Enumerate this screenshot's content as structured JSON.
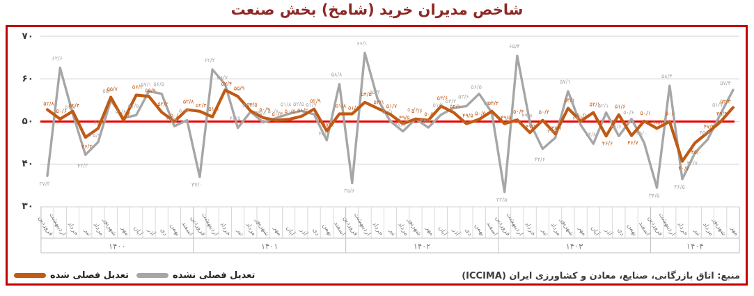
{
  "title": "شاخص مدیران خرید (شامخ) بخش صنعت",
  "source": "منبع: اتاق بازرگانی، صنایع، معادن و کشاورزی ایران (ICCIMA)",
  "legend": {
    "items": [
      {
        "label": "تعدیل فصلی شده",
        "color": "#C05A15"
      },
      {
        "label": "تعدیل فصلی نشده",
        "color": "#A6A6A6"
      }
    ]
  },
  "colors": {
    "title": "#8E2723",
    "frame_border": "#C00000",
    "reference_line": "#EE0000",
    "gridline": "#D9D9D9",
    "axis_table_line": "#BFBFBF",
    "month_text": "#7F7F7F",
    "year_text": "#7F7F7F",
    "adjusted_series": "#C05A15",
    "unadjusted_series": "#A6A6A6"
  },
  "chart_data": {
    "type": "line",
    "title": "شاخص مدیران خرید (شامخ) بخش صنعت",
    "ylim": [
      30,
      70
    ],
    "grid": true,
    "legend_position": "bottom-left",
    "reference_line": {
      "value": 50,
      "color": "#EE0000"
    },
    "yticks": [
      {
        "value": 70,
        "label": "۷۰"
      },
      {
        "value": 60,
        "label": "۶۰"
      },
      {
        "value": 50,
        "label": "۵۰"
      },
      {
        "value": 40,
        "label": "۴۰"
      },
      {
        "value": 30,
        "label": "۳۰"
      }
    ],
    "month_names": [
      "فروردین",
      "اردیبهشت",
      "خرداد",
      "تیر",
      "مرداد",
      "شهریور",
      "مهر",
      "آبان",
      "آذر",
      "دی",
      "بهمن",
      "اسفند"
    ],
    "years": [
      {
        "label": "۱۴۰۰",
        "months": 12
      },
      {
        "label": "۱۴۰۱",
        "months": 12
      },
      {
        "label": "۱۴۰۲",
        "months": 12
      },
      {
        "label": "۱۴۰۳",
        "months": 12
      },
      {
        "label": "۱۴۰۴",
        "months": 7
      }
    ],
    "series": [
      {
        "name": "تعدیل فصلی شده",
        "color": "#C05A15",
        "values": [
          52.8,
          50.6,
          52.4,
          46.3,
          48.4,
          55.7,
          50.3,
          56.2,
          55.9,
          52.2,
          50.0,
          52.8,
          52.4,
          51.1,
          57.4,
          55.9,
          52.5,
          50.9,
          50.3,
          50.5,
          51.2,
          52.9,
          47.8,
          51.8,
          51.8,
          54.5,
          53.1,
          51.7,
          49.5,
          50.6,
          50.3,
          53.6,
          52.1,
          49.5,
          50.5,
          52.4,
          49.5,
          50.4,
          47.4,
          50.3,
          47.1,
          53.1,
          50.1,
          52.1,
          46.6,
          51.6,
          46.7,
          50.1,
          48.4,
          50.0,
          40.7,
          45.0,
          47.4,
          49.9,
          53.3
        ]
      },
      {
        "name": "تعدیل فصلی نشده",
        "color": "#A6A6A6",
        "values": [
          37.3,
          62.6,
          51.8,
          42.2,
          45.2,
          55.0,
          50.8,
          51.5,
          57.1,
          56.5,
          48.9,
          50.3,
          37.0,
          62.2,
          58.7,
          48.5,
          52.3,
          49.8,
          50.8,
          51.8,
          52.5,
          51.7,
          45.6,
          58.8,
          35.6,
          66.1,
          55.3,
          50.1,
          47.7,
          50.6,
          48.6,
          51.6,
          53.2,
          53.6,
          56.5,
          52.1,
          33.5,
          65.4,
          49.8,
          43.6,
          46.2,
          57.1,
          49.2,
          44.8,
          52.1,
          46.6,
          50.6,
          45.0,
          34.5,
          58.4,
          36.5,
          42.7,
          45.8,
          51.7,
          57.4
        ]
      }
    ]
  }
}
